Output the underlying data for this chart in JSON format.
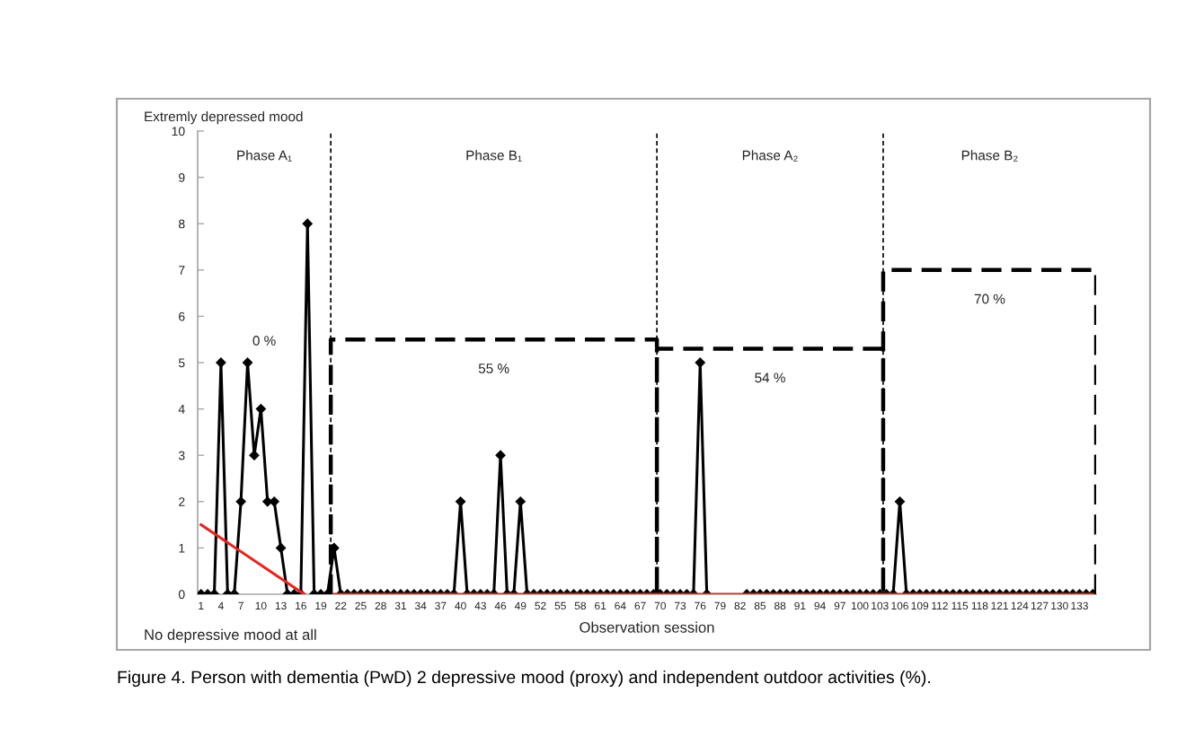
{
  "chart_data": {
    "type": "line",
    "ylabel": "Extremly depressed mood",
    "xlabel": "Observation session",
    "x": [
      1,
      2,
      3,
      4,
      5,
      6,
      7,
      8,
      9,
      10,
      11,
      12,
      13,
      14,
      15,
      16,
      17,
      18,
      19,
      20,
      21,
      22,
      23,
      24,
      25,
      26,
      27,
      28,
      29,
      30,
      31,
      32,
      33,
      34,
      35,
      36,
      37,
      38,
      39,
      40,
      41,
      42,
      43,
      44,
      45,
      46,
      47,
      48,
      49,
      50,
      51,
      52,
      53,
      54,
      55,
      56,
      57,
      58,
      59,
      60,
      61,
      62,
      63,
      64,
      65,
      66,
      67,
      68,
      69,
      70,
      71,
      72,
      73,
      74,
      75,
      76,
      77,
      78,
      79,
      80,
      81,
      82,
      83,
      84,
      85,
      86,
      87,
      88,
      89,
      90,
      91,
      92,
      93,
      94,
      95,
      96,
      97,
      98,
      99,
      100,
      101,
      102,
      103,
      104,
      105,
      106,
      107,
      108,
      109,
      110,
      111,
      112,
      113,
      114,
      115,
      116,
      117,
      118,
      119,
      120,
      121,
      122,
      123,
      124,
      125,
      126,
      127,
      128,
      129,
      130,
      131,
      132,
      133,
      134,
      135
    ],
    "series": [
      {
        "color": "#000000",
        "marker": "diamond",
        "values": [
          0,
          0,
          0,
          5,
          0,
          0,
          2,
          5,
          3,
          4,
          2,
          2,
          1,
          0,
          0,
          0,
          8,
          0,
          0,
          0,
          1,
          0,
          0,
          0,
          0,
          0,
          0,
          0,
          0,
          0,
          0,
          0,
          0,
          0,
          0,
          0,
          0,
          0,
          0,
          2,
          0,
          0,
          0,
          0,
          0,
          3,
          0,
          0,
          2,
          0,
          0,
          0,
          0,
          0,
          0,
          0,
          0,
          0,
          0,
          0,
          0,
          0,
          0,
          0,
          0,
          0,
          0,
          0,
          0,
          0,
          0,
          0,
          0,
          0,
          0,
          5,
          0,
          null,
          null,
          null,
          null,
          null,
          0,
          0,
          0,
          0,
          0,
          0,
          0,
          0,
          0,
          0,
          0,
          0,
          0,
          0,
          0,
          0,
          0,
          0,
          0,
          0,
          0,
          0,
          0,
          2,
          0,
          0,
          0,
          0,
          0,
          0,
          0,
          0,
          0,
          0,
          0,
          0,
          0,
          0,
          0,
          0,
          0,
          0,
          0,
          0,
          0,
          0,
          0,
          0,
          0,
          0,
          0,
          0,
          0
        ]
      },
      {
        "color": "#e8251f",
        "marker": "none",
        "x": [
          1,
          16.5
        ],
        "values": [
          1.5,
          0
        ]
      },
      {
        "color": "#e8251f",
        "marker": "none",
        "x": [
          21,
          135
        ],
        "values": [
          0,
          0
        ]
      },
      {
        "color": "#000000",
        "marker": "none",
        "line_style": "dashed",
        "x": [
          20.5,
          20.5,
          69.5,
          69.5,
          69.5,
          103.5,
          103.5,
          103.5,
          135.5,
          135.5
        ],
        "values": [
          0,
          5.5,
          5.5,
          0,
          5.3,
          5.3,
          0,
          7,
          7,
          0
        ]
      }
    ],
    "xlim": [
      0.5,
      135.5
    ],
    "xticks": [
      1,
      4,
      7,
      10,
      13,
      16,
      19,
      22,
      25,
      28,
      31,
      34,
      37,
      40,
      43,
      46,
      49,
      52,
      55,
      58,
      61,
      64,
      67,
      70,
      73,
      76,
      79,
      82,
      85,
      88,
      91,
      94,
      97,
      100,
      103,
      106,
      109,
      112,
      115,
      118,
      121,
      124,
      127,
      130,
      133
    ],
    "ylim": [
      0,
      10
    ],
    "yticks": [
      0,
      1,
      2,
      3,
      4,
      5,
      6,
      7,
      8,
      9,
      10
    ],
    "ref_lines": [
      {
        "axis": "x",
        "value": 20.5,
        "color": "#000000",
        "line_style": "dashed"
      },
      {
        "axis": "x",
        "value": 69.5,
        "color": "#000000",
        "line_style": "dashed"
      },
      {
        "axis": "x",
        "value": 103.5,
        "color": "#000000",
        "line_style": "dashed"
      }
    ],
    "annotations": [
      "Phase A₁",
      "Phase B₁",
      "Phase A₂",
      "Phase B₂",
      "0 %",
      "55 %",
      "54 %",
      "70 %",
      "No depressive mood at all",
      "Figure 4. Person with dementia (PwD) 2 depressive mood (proxy) and independent outdoor activities (%)."
    ]
  }
}
